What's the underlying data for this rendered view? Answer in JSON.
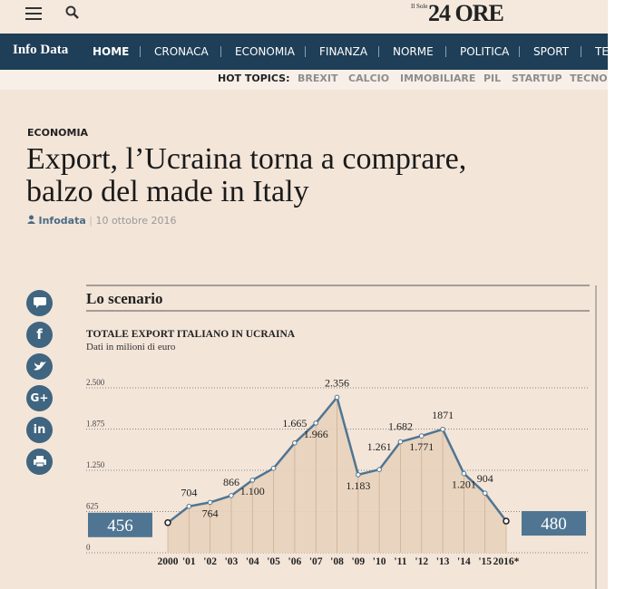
{
  "header": {
    "logo_small": "Il Sole",
    "logo_big": "24 ORE"
  },
  "nav": {
    "brand": "Info Data",
    "items": [
      "HOME",
      "CRONACA",
      "ECONOMIA",
      "FINANZA",
      "NORME",
      "POLITICA",
      "SPORT",
      "TEC"
    ]
  },
  "hot_topics": {
    "label": "HOT TOPICS:",
    "items": [
      "BREXIT",
      "CALCIO",
      "IMMOBILIARE",
      "PIL",
      "STARTUP",
      "TECNO"
    ]
  },
  "article": {
    "section": "ECONOMIA",
    "title_lines": [
      "Export, l’Ucraina torna a comprare,",
      "balzo del made in Italy"
    ],
    "author": "Infodata",
    "date": "10 ottobre 2016"
  },
  "share_icons": [
    "f",
    "G+",
    "in"
  ],
  "chart_data": {
    "type": "line",
    "heading": "Lo scenario",
    "title": "TOTALE EXPORT ITALIANO IN UCRAINA",
    "subtitle": "Dati in milioni di euro",
    "categories": [
      "2000",
      "'01",
      "'02",
      "'03",
      "'04",
      "'05",
      "'06",
      "'07",
      "'08",
      "'09",
      "'10",
      "'11",
      "'12",
      "'13",
      "'14",
      "'15",
      "2016*"
    ],
    "values": [
      456,
      704,
      764,
      866,
      1100,
      1280,
      1665,
      1966,
      2356,
      1183,
      1261,
      1682,
      1771,
      1871,
      1201,
      904,
      480
    ],
    "value_labels": [
      "456",
      "704",
      "764",
      "866",
      "1.100",
      null,
      "1.665",
      "1.966",
      "2.356",
      "1.183",
      "1.261",
      "1.682",
      "1.771",
      "1871",
      "1.201",
      "904",
      "480"
    ],
    "color": "#4f7592",
    "ylim": [
      0,
      2500
    ],
    "yticks": [
      0,
      625,
      {
        "value": 1250,
        "label": "1.250"
      },
      {
        "value": 1875,
        "label": "1.875"
      },
      {
        "value": 2500,
        "label": "2.500"
      }
    ],
    "grid": true
  }
}
